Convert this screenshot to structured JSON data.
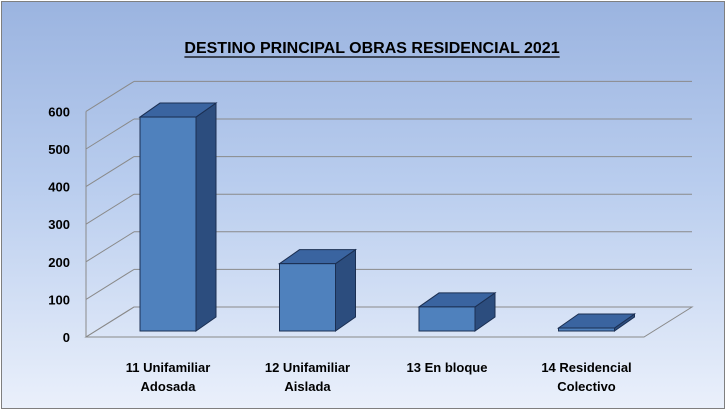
{
  "chart_data": {
    "type": "bar",
    "title": "DESTINO PRINCIPAL OBRAS RESIDENCIAL 2021",
    "categories": [
      [
        "11 Unifamiliar",
        "Adosada"
      ],
      [
        "12 Unifamiliar",
        "Aislada"
      ],
      [
        "13 En bloque"
      ],
      [
        "14 Residencial",
        "Colectivo"
      ]
    ],
    "values": [
      585,
      195,
      80,
      12
    ],
    "yticks": [
      "0",
      "100",
      "200",
      "300",
      "400",
      "500",
      "600"
    ],
    "ylim": [
      0,
      600
    ],
    "grid": true,
    "legend": "none",
    "colors": {
      "front": "#4f81bd",
      "top": "#3a64a0",
      "side": "#2c4d7e",
      "stroke": "#1b2f52"
    }
  }
}
